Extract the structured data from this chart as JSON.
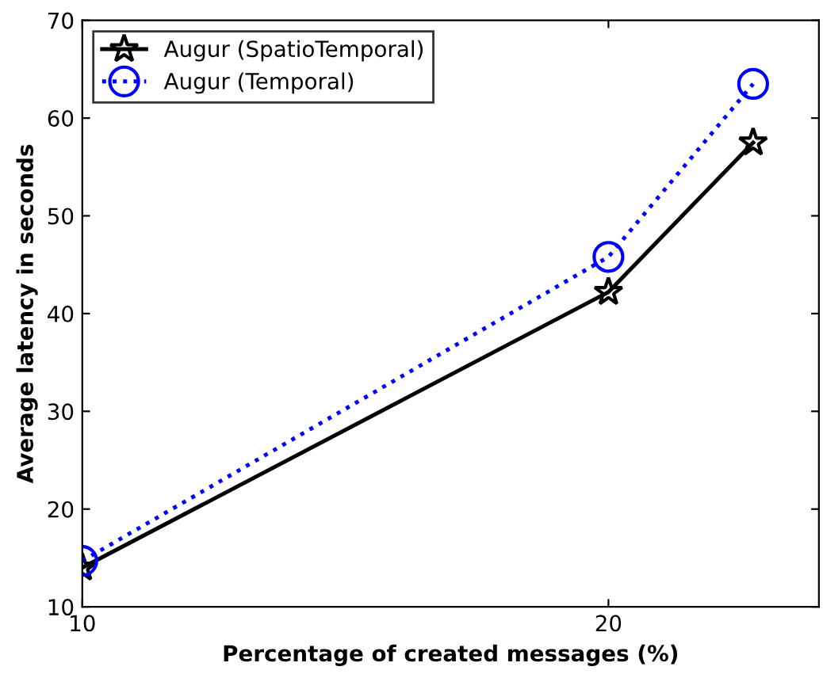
{
  "chart_data": {
    "type": "line",
    "xlabel": "Percentage of created messages (%)",
    "ylabel": "Average latency in seconds",
    "xlim": [
      10,
      24
    ],
    "xticks": [
      10,
      20
    ],
    "ylim": [
      10,
      70
    ],
    "yticks": [
      10,
      20,
      30,
      40,
      50,
      60,
      70
    ],
    "grid": false,
    "legend": "top left",
    "series": [
      {
        "name": "Augur (SpatioTemporal)",
        "color": "#000000",
        "x": [
          10,
          20,
          22.75
        ],
        "values": [
          14.0,
          42.2,
          57.5
        ],
        "marker": "star",
        "line_style": "solid"
      },
      {
        "name": "Augur (Temporal)",
        "color": "#0000ff",
        "x": [
          10,
          20,
          22.75
        ],
        "values": [
          14.7,
          45.8,
          63.5
        ],
        "marker": "circle",
        "line_style": "dotted"
      }
    ]
  }
}
